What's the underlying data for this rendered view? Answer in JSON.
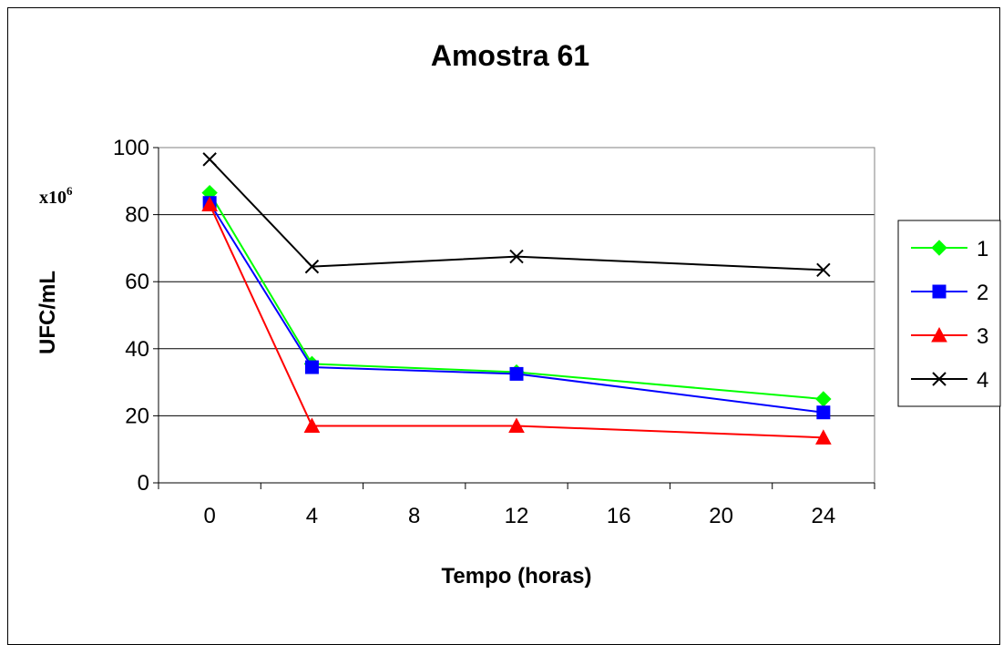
{
  "chart_data": {
    "type": "line",
    "title": "Amostra 61",
    "xlabel": "Tempo (horas)",
    "ylabel": "UFC/mL",
    "y_multiplier": {
      "base": "x10",
      "exponent": "6"
    },
    "x": [
      0,
      4,
      12,
      24
    ],
    "x_ticks": [
      0,
      4,
      8,
      12,
      16,
      20,
      24
    ],
    "y_ticks": [
      0,
      20,
      40,
      60,
      80,
      100
    ],
    "xlim": [
      -2,
      26
    ],
    "ylim": [
      0,
      100
    ],
    "grid": "horizontal",
    "legend_position": "right",
    "series": [
      {
        "name": "1",
        "values": [
          86.5,
          35.5,
          33,
          25
        ],
        "color": "#00ff00",
        "marker": "diamond"
      },
      {
        "name": "2",
        "values": [
          83.5,
          34.5,
          32.5,
          21
        ],
        "color": "#0000ff",
        "marker": "square"
      },
      {
        "name": "3",
        "values": [
          83,
          17,
          17,
          13.5
        ],
        "color": "#ff0000",
        "marker": "triangle"
      },
      {
        "name": "4",
        "values": [
          96.5,
          64.5,
          67.5,
          63.5
        ],
        "color": "#000000",
        "marker": "x"
      }
    ]
  }
}
